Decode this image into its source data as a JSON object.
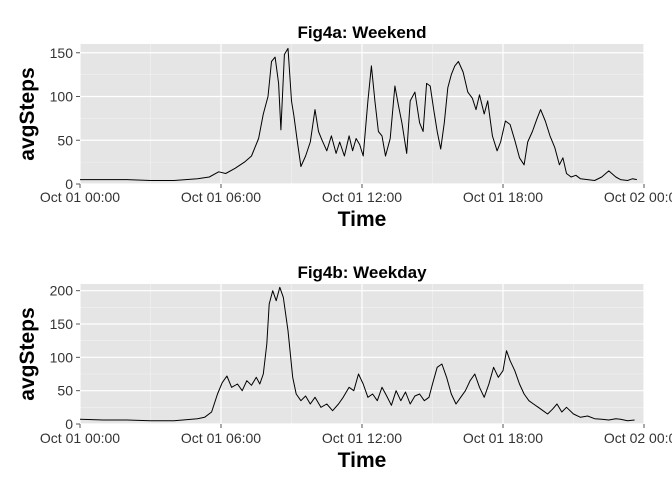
{
  "chart_data": [
    {
      "type": "line",
      "title": "Fig4a: Weekend",
      "xlabel": "Time",
      "ylabel": "avgSteps",
      "xlim": [
        0,
        24
      ],
      "ylim": [
        0,
        160
      ],
      "grid": true,
      "x_tick_values": [
        0,
        6,
        12,
        18,
        24
      ],
      "x_tick_labels": [
        "Oct 01 00:00",
        "Oct 01 06:00",
        "Oct 01 12:00",
        "Oct 01 18:00",
        "Oct 02 00:00"
      ],
      "y_ticks": [
        0,
        50,
        100,
        150
      ],
      "x_unit": "hour",
      "series": [
        {
          "x": [
            0,
            1,
            2,
            3,
            4,
            5,
            5.5,
            5.9,
            6.2,
            6.6,
            7,
            7.3,
            7.6,
            7.8,
            8,
            8.15,
            8.3,
            8.45,
            8.55,
            8.7,
            8.85,
            9,
            9.1,
            9.25,
            9.4,
            9.6,
            9.8,
            10,
            10.15,
            10.3,
            10.5,
            10.7,
            10.9,
            11.05,
            11.25,
            11.45,
            11.6,
            11.75,
            11.9,
            12.05,
            12.25,
            12.4,
            12.55,
            12.7,
            12.85,
            13,
            13.2,
            13.4,
            13.55,
            13.7,
            13.9,
            14.05,
            14.25,
            14.45,
            14.6,
            14.75,
            14.9,
            15.05,
            15.2,
            15.35,
            15.5,
            15.65,
            15.8,
            15.95,
            16.1,
            16.3,
            16.5,
            16.7,
            16.85,
            17,
            17.2,
            17.35,
            17.55,
            17.75,
            17.9,
            18.1,
            18.3,
            18.5,
            18.7,
            18.9,
            19.05,
            19.25,
            19.45,
            19.6,
            19.8,
            20,
            20.2,
            20.4,
            20.55,
            20.7,
            20.9,
            21.1,
            21.3,
            21.6,
            21.9,
            22.2,
            22.5,
            22.8,
            23,
            23.3,
            23.5,
            23.7
          ],
          "y": [
            5,
            5,
            5,
            4,
            4,
            6,
            8,
            14,
            12,
            18,
            25,
            32,
            52,
            80,
            100,
            140,
            145,
            115,
            62,
            148,
            155,
            95,
            78,
            48,
            20,
            32,
            48,
            85,
            60,
            50,
            38,
            55,
            35,
            48,
            32,
            55,
            38,
            52,
            45,
            32,
            95,
            135,
            95,
            60,
            55,
            32,
            52,
            112,
            90,
            70,
            35,
            95,
            105,
            70,
            60,
            115,
            112,
            85,
            60,
            40,
            70,
            110,
            125,
            135,
            140,
            128,
            105,
            98,
            85,
            102,
            80,
            95,
            55,
            38,
            48,
            72,
            68,
            50,
            30,
            22,
            48,
            60,
            75,
            85,
            72,
            55,
            42,
            22,
            30,
            12,
            8,
            10,
            6,
            5,
            4,
            8,
            15,
            8,
            5,
            4,
            6,
            5
          ]
        }
      ]
    },
    {
      "type": "line",
      "title": "Fig4b: Weekday",
      "xlabel": "Time",
      "ylabel": "avgSteps",
      "xlim": [
        0,
        24
      ],
      "ylim": [
        0,
        210
      ],
      "grid": true,
      "x_tick_values": [
        0,
        6,
        12,
        18,
        24
      ],
      "x_tick_labels": [
        "Oct 01 00:00",
        "Oct 01 06:00",
        "Oct 01 12:00",
        "Oct 01 18:00",
        "Oct 02 00:00"
      ],
      "y_ticks": [
        0,
        50,
        100,
        150,
        200
      ],
      "x_unit": "hour",
      "series": [
        {
          "x": [
            0,
            1,
            2,
            3,
            4,
            5,
            5.3,
            5.6,
            5.85,
            6.05,
            6.25,
            6.45,
            6.7,
            6.9,
            7.1,
            7.3,
            7.5,
            7.65,
            7.8,
            7.95,
            8.05,
            8.2,
            8.35,
            8.5,
            8.65,
            8.85,
            9.05,
            9.2,
            9.4,
            9.6,
            9.8,
            10,
            10.25,
            10.5,
            10.75,
            11,
            11.2,
            11.45,
            11.65,
            11.85,
            12.05,
            12.25,
            12.45,
            12.65,
            12.85,
            13.05,
            13.25,
            13.45,
            13.65,
            13.85,
            14.05,
            14.25,
            14.45,
            14.65,
            14.85,
            15,
            15.2,
            15.4,
            15.6,
            15.8,
            16,
            16.2,
            16.4,
            16.6,
            16.8,
            17,
            17.2,
            17.4,
            17.6,
            17.8,
            18,
            18.15,
            18.3,
            18.5,
            18.7,
            18.9,
            19.1,
            19.3,
            19.5,
            19.7,
            19.9,
            20.1,
            20.3,
            20.5,
            20.7,
            21,
            21.3,
            21.6,
            21.9,
            22.2,
            22.5,
            22.8,
            23,
            23.3,
            23.6
          ],
          "y": [
            7,
            6,
            6,
            5,
            5,
            8,
            10,
            18,
            45,
            62,
            72,
            55,
            60,
            50,
            65,
            58,
            70,
            60,
            75,
            120,
            180,
            200,
            185,
            205,
            190,
            140,
            70,
            45,
            35,
            42,
            30,
            40,
            25,
            30,
            20,
            30,
            40,
            55,
            50,
            75,
            60,
            40,
            45,
            35,
            55,
            42,
            28,
            50,
            35,
            48,
            30,
            42,
            45,
            35,
            40,
            60,
            85,
            90,
            70,
            45,
            30,
            40,
            50,
            65,
            75,
            55,
            40,
            60,
            85,
            70,
            80,
            110,
            95,
            80,
            60,
            45,
            35,
            30,
            25,
            20,
            15,
            22,
            30,
            18,
            25,
            15,
            10,
            12,
            8,
            7,
            6,
            8,
            7,
            5,
            6
          ]
        }
      ]
    }
  ]
}
